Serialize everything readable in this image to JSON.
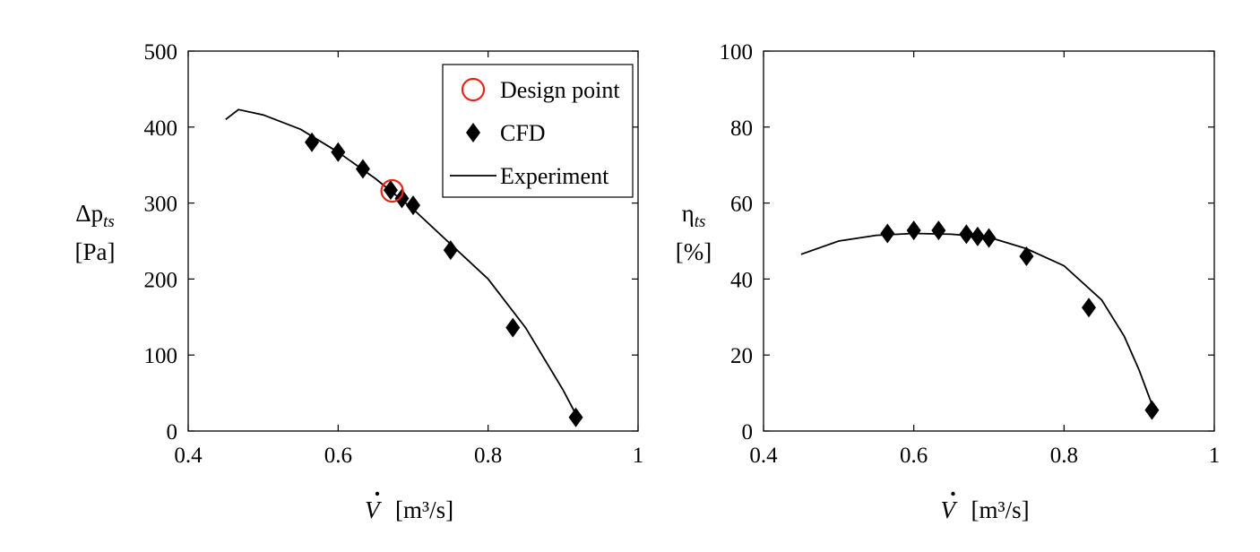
{
  "chart_data": [
    {
      "type": "line",
      "xlabel": "V̇ [m³/s]",
      "xlabel_symbol": "V",
      "xlabel_unit": "[m³/s]",
      "ylabel_symbol": "Δp",
      "ylabel_subscript": "ts",
      "ylabel_unit": "[Pa]",
      "xlim": [
        0.4,
        1.0
      ],
      "ylim": [
        0,
        500
      ],
      "xticks": [
        0.4,
        0.6,
        0.8,
        1.0
      ],
      "xtick_labels": [
        "0.4",
        "0.6",
        "0.8",
        "1"
      ],
      "yticks": [
        0,
        100,
        200,
        300,
        400,
        500
      ],
      "ytick_labels": [
        "0",
        "100",
        "200",
        "300",
        "400",
        "500"
      ],
      "grid": false,
      "legend_position": "top-right",
      "series": [
        {
          "name": "Design point",
          "kind": "marker-circle",
          "color": "#e8251a",
          "points": [
            [
              0.672,
              316
            ]
          ]
        },
        {
          "name": "CFD",
          "kind": "marker-diamond",
          "color": "#000000",
          "points": [
            [
              0.565,
              380
            ],
            [
              0.6,
              367
            ],
            [
              0.633,
              345
            ],
            [
              0.67,
              317
            ],
            [
              0.685,
              306
            ],
            [
              0.7,
              297
            ],
            [
              0.75,
              238
            ],
            [
              0.833,
              136
            ],
            [
              0.917,
              18
            ]
          ]
        },
        {
          "name": "Experiment",
          "kind": "line",
          "color": "#000000",
          "points": [
            [
              0.45,
              410
            ],
            [
              0.467,
              423
            ],
            [
              0.5,
              416
            ],
            [
              0.55,
              397
            ],
            [
              0.6,
              367
            ],
            [
              0.65,
              332
            ],
            [
              0.7,
              292
            ],
            [
              0.75,
              246
            ],
            [
              0.8,
              200
            ],
            [
              0.85,
              136
            ],
            [
              0.9,
              54
            ],
            [
              0.917,
              22
            ]
          ]
        }
      ]
    },
    {
      "type": "line",
      "xlabel": "V̇ [m³/s]",
      "xlabel_symbol": "V",
      "xlabel_unit": "[m³/s]",
      "ylabel_symbol": "η",
      "ylabel_subscript": "ts",
      "ylabel_unit": "[%]",
      "xlim": [
        0.4,
        1.0
      ],
      "ylim": [
        0,
        100
      ],
      "xticks": [
        0.4,
        0.6,
        0.8,
        1.0
      ],
      "xtick_labels": [
        "0.4",
        "0.6",
        "0.8",
        "1"
      ],
      "yticks": [
        0,
        20,
        40,
        60,
        80,
        100
      ],
      "ytick_labels": [
        "0",
        "20",
        "40",
        "60",
        "80",
        "100"
      ],
      "grid": false,
      "series": [
        {
          "name": "CFD",
          "kind": "marker-diamond",
          "color": "#000000",
          "points": [
            [
              0.565,
              52
            ],
            [
              0.6,
              52.8
            ],
            [
              0.633,
              52.8
            ],
            [
              0.67,
              51.8
            ],
            [
              0.685,
              51.2
            ],
            [
              0.7,
              50.8
            ],
            [
              0.75,
              46
            ],
            [
              0.833,
              32.5
            ],
            [
              0.917,
              5.5
            ]
          ]
        },
        {
          "name": "Experiment",
          "kind": "line",
          "color": "#000000",
          "points": [
            [
              0.45,
              46.5
            ],
            [
              0.5,
              50
            ],
            [
              0.55,
              51.5
            ],
            [
              0.6,
              52
            ],
            [
              0.65,
              51.8
            ],
            [
              0.7,
              51
            ],
            [
              0.75,
              48
            ],
            [
              0.8,
              43.5
            ],
            [
              0.85,
              34.5
            ],
            [
              0.88,
              25
            ],
            [
              0.9,
              16
            ],
            [
              0.917,
              7
            ]
          ]
        }
      ]
    }
  ]
}
